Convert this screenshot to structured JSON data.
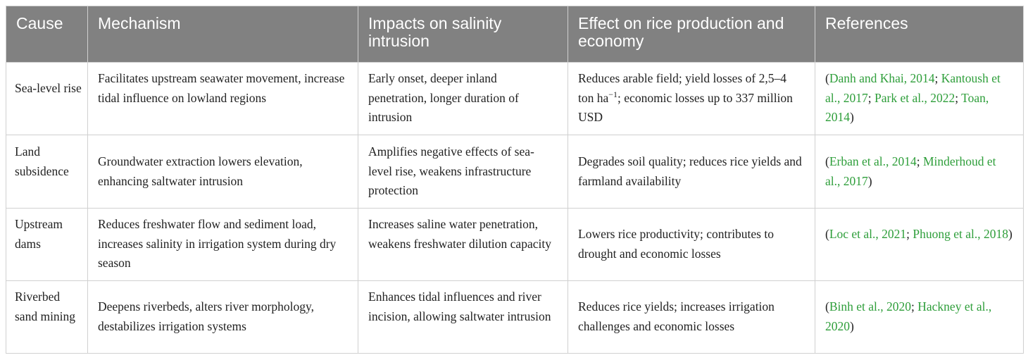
{
  "table": {
    "headers": [
      "Cause",
      "Mechanism",
      "Impacts on salinity intrusion",
      "Effect on rice production and economy",
      "References"
    ],
    "rows": [
      {
        "cause": "Sea-level rise",
        "mechanism": "Facilitates upstream seawater movement, increase tidal influence on lowland regions",
        "impact": "Early onset, deeper inland penetration, longer duration of intrusion",
        "effect_pre": "Reduces arable field; yield losses of 2,5–4 ton ha",
        "effect_sup": "−1",
        "effect_post": "; economic losses up to 337 million USD",
        "refs": [
          "Danh and Khai, 2014",
          "Kantoush et al., 2017",
          "Park et al., 2022",
          "Toan, 2014"
        ]
      },
      {
        "cause": "Land subsidence",
        "mechanism": "Groundwater extraction lowers elevation, enhancing saltwater intrusion",
        "impact": "Amplifies negative effects of sea-level rise, weakens infrastructure protection",
        "effect": "Degrades soil quality; reduces rice yields and farmland availability",
        "refs": [
          "Erban et al., 2014",
          "Minderhoud et al., 2017"
        ]
      },
      {
        "cause": "Upstream dams",
        "mechanism": "Reduces freshwater flow and sediment load, increases salinity in irrigation system during dry season",
        "impact": "Increases saline water penetration, weakens freshwater dilution capacity",
        "effect": "Lowers rice productivity; contributes to drought and economic losses",
        "refs": [
          "Loc et al., 2021",
          "Phuong et al., 2018"
        ]
      },
      {
        "cause": "Riverbed sand mining",
        "mechanism": "Deepens riverbeds, alters river morphology, destabilizes irrigation systems",
        "impact": "Enhances tidal influences and river incision, allowing saltwater intrusion",
        "effect": "Reduces rice yields; increases irrigation challenges and economic losses",
        "refs": [
          "Binh et al., 2020",
          "Hackney et al., 2020"
        ]
      }
    ],
    "punct": {
      "open": "(",
      "sep": "; ",
      "close": ")"
    }
  }
}
